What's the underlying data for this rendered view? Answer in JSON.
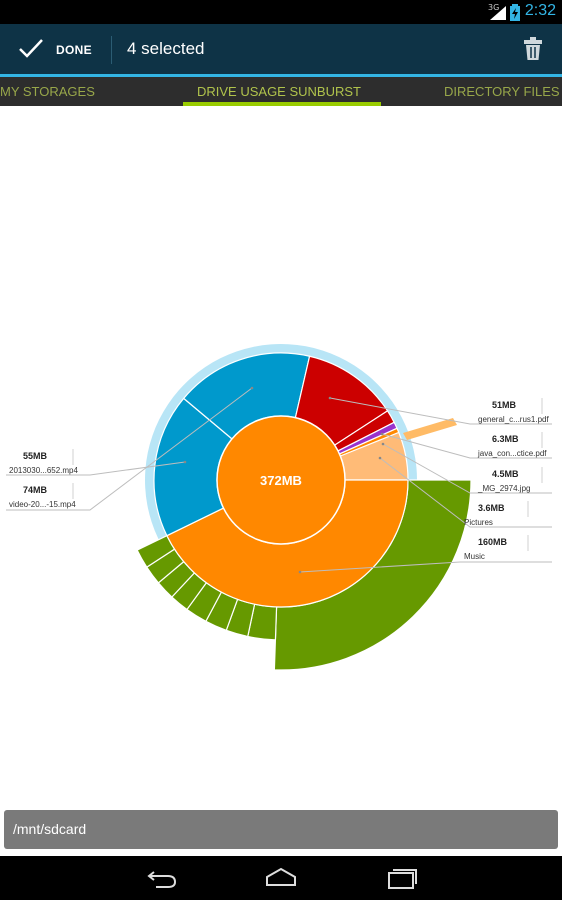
{
  "status_bar": {
    "network": "3G",
    "time": "2:32"
  },
  "action_bar": {
    "done_label": "DONE",
    "selected_text": "4 selected"
  },
  "tabs": [
    "MY STORAGES",
    "DRIVE USAGE SUNBURST",
    "DIRECTORY FILES"
  ],
  "active_tab": 1,
  "center_label": "372MB",
  "path": "/mnt/sdcard",
  "colors": {
    "accent": "#33b5e5",
    "green": "#669900",
    "orange": "#ff8800",
    "blue": "#0099cc",
    "red": "#cc0000",
    "purple": "#9933cc",
    "light_orange": "#ffbb77"
  },
  "chart_data": {
    "type": "sunburst",
    "total": "372MB",
    "callouts": [
      {
        "size": "51MB",
        "name": "general_c...rus1.pdf"
      },
      {
        "size": "6.3MB",
        "name": "java_con...ctice.pdf"
      },
      {
        "size": "4.5MB",
        "name": "_MG_2974.jpg"
      },
      {
        "size": "3.6MB",
        "name": "Pictures"
      },
      {
        "size": "160MB",
        "name": "Music"
      },
      {
        "size": "55MB",
        "name": "2013030...652.mp4"
      },
      {
        "size": "74MB",
        "name": "video-20...-15.mp4"
      }
    ]
  }
}
